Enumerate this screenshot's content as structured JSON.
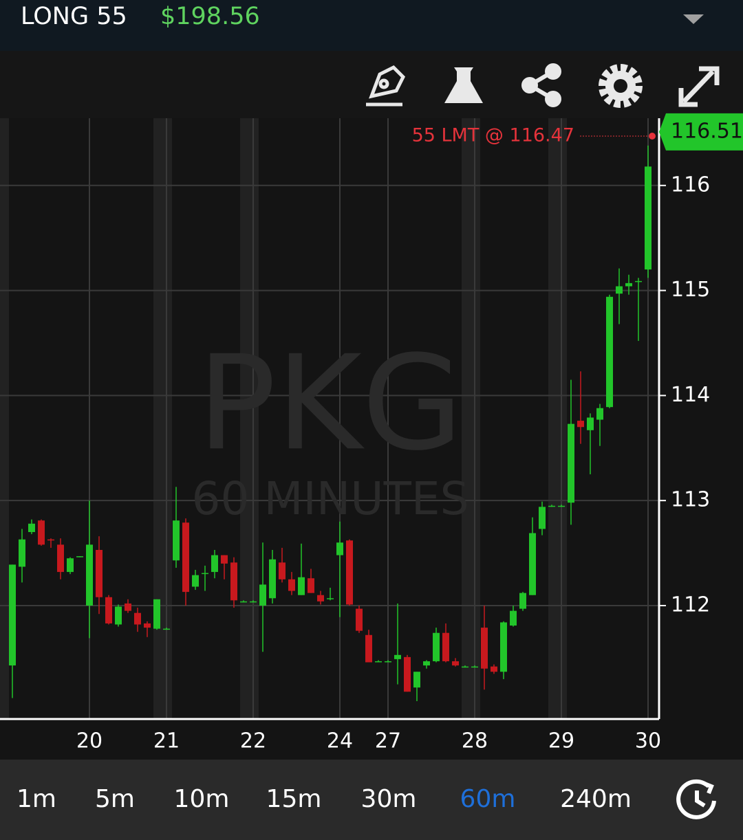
{
  "header": {
    "position": "LONG 55",
    "value": "$198.56"
  },
  "chart_data": {
    "type": "candlestick",
    "title": "PKG",
    "subtitle": "60 MINUTES",
    "categories": [
      null,
      null,
      null,
      null,
      null,
      null,
      null,
      null,
      "20",
      null,
      null,
      null,
      null,
      null,
      null,
      null,
      "21",
      null,
      null,
      null,
      null,
      null,
      null,
      null,
      null,
      "22",
      null,
      null,
      null,
      null,
      null,
      null,
      null,
      null,
      "24",
      null,
      null,
      null,
      null,
      "27",
      null,
      null,
      null,
      null,
      null,
      null,
      null,
      null,
      "28",
      null,
      null,
      null,
      null,
      null,
      null,
      null,
      null,
      "29",
      null,
      null,
      null,
      null,
      null,
      null,
      null,
      null,
      "30"
    ],
    "open": [
      111.43,
      112.37,
      112.7,
      112.81,
      112.63,
      112.58,
      112.32,
      112.46,
      112.0,
      112.53,
      112.08,
      111.82,
      112.02,
      111.93,
      111.83,
      111.78,
      111.78,
      112.43,
      112.79,
      112.18,
      112.31,
      112.32,
      112.48,
      112.41,
      112.04,
      112.04,
      112.0,
      112.07,
      112.41,
      112.25,
      112.1,
      112.26,
      112.1,
      112.07,
      112.48,
      112.62,
      111.97,
      111.72,
      111.47,
      111.47,
      111.49,
      111.51,
      111.22,
      111.43,
      111.47,
      111.74,
      111.47,
      111.42,
      111.42,
      111.79,
      111.42,
      111.37,
      111.81,
      111.97,
      112.1,
      112.73,
      112.95,
      112.95,
      112.98,
      113.76,
      113.67,
      113.77,
      113.89,
      114.97,
      115.04,
      115.09,
      115.2
    ],
    "high": [
      112.39,
      112.73,
      112.82,
      112.82,
      112.64,
      112.64,
      112.46,
      112.47,
      113.0,
      112.66,
      112.1,
      112.01,
      112.06,
      111.98,
      111.85,
      112.06,
      111.79,
      113.13,
      112.83,
      112.34,
      112.38,
      112.53,
      112.48,
      112.46,
      112.05,
      112.05,
      112.6,
      112.53,
      112.55,
      112.32,
      112.59,
      112.35,
      112.14,
      112.17,
      112.8,
      112.63,
      112.0,
      111.77,
      111.48,
      111.48,
      112.02,
      111.53,
      111.37,
      111.48,
      111.79,
      111.83,
      111.5,
      111.43,
      111.43,
      112.0,
      111.44,
      111.85,
      112.0,
      112.13,
      112.84,
      112.99,
      112.96,
      112.96,
      114.15,
      114.23,
      113.83,
      113.92,
      114.96,
      115.21,
      115.15,
      115.12,
      116.38
    ],
    "low": [
      111.12,
      112.22,
      112.68,
      112.57,
      112.55,
      112.25,
      112.3,
      112.46,
      111.69,
      111.92,
      111.82,
      111.8,
      111.93,
      111.75,
      111.7,
      111.77,
      111.77,
      112.36,
      112.0,
      112.15,
      112.14,
      112.26,
      112.25,
      111.98,
      112.03,
      112.03,
      111.56,
      112.02,
      112.22,
      112.1,
      112.1,
      112.12,
      112.01,
      112.05,
      111.89,
      112.0,
      111.74,
      111.46,
      111.46,
      111.46,
      111.25,
      111.18,
      111.09,
      111.4,
      111.46,
      111.46,
      111.42,
      111.41,
      111.41,
      111.2,
      111.35,
      111.3,
      111.8,
      111.95,
      112.1,
      112.67,
      112.94,
      112.94,
      112.77,
      113.54,
      113.25,
      113.52,
      113.88,
      114.68,
      114.96,
      114.52,
      115.12
    ],
    "close": [
      112.39,
      112.63,
      112.78,
      112.58,
      112.62,
      112.32,
      112.45,
      112.47,
      112.58,
      112.08,
      111.83,
      111.99,
      111.95,
      111.82,
      111.79,
      112.06,
      111.78,
      112.81,
      112.13,
      112.29,
      112.31,
      112.48,
      112.4,
      112.05,
      112.04,
      112.04,
      112.2,
      112.44,
      112.25,
      112.14,
      112.27,
      112.12,
      112.04,
      112.07,
      112.6,
      112.01,
      111.76,
      111.46,
      111.47,
      111.47,
      111.53,
      111.18,
      111.37,
      111.47,
      111.74,
      111.47,
      111.43,
      111.42,
      111.42,
      111.4,
      111.37,
      111.84,
      111.95,
      112.12,
      112.69,
      112.94,
      112.95,
      112.95,
      113.73,
      113.7,
      113.79,
      113.88,
      114.94,
      115.04,
      115.07,
      115.09,
      116.18
    ],
    "up_color": "#22c52a",
    "down_color": "#c8191e",
    "ylim": [
      110.92,
      116.64
    ],
    "yticks": [
      112,
      113,
      114,
      115,
      116
    ],
    "grid": true,
    "order": {
      "label": "55 LMT @ 116.47",
      "value": 116.47,
      "color": "#e5333b"
    },
    "last_price": 116.51
  },
  "timeframes": {
    "items": [
      "1m",
      "5m",
      "10m",
      "15m",
      "30m",
      "60m",
      "240m"
    ],
    "active": 5
  }
}
